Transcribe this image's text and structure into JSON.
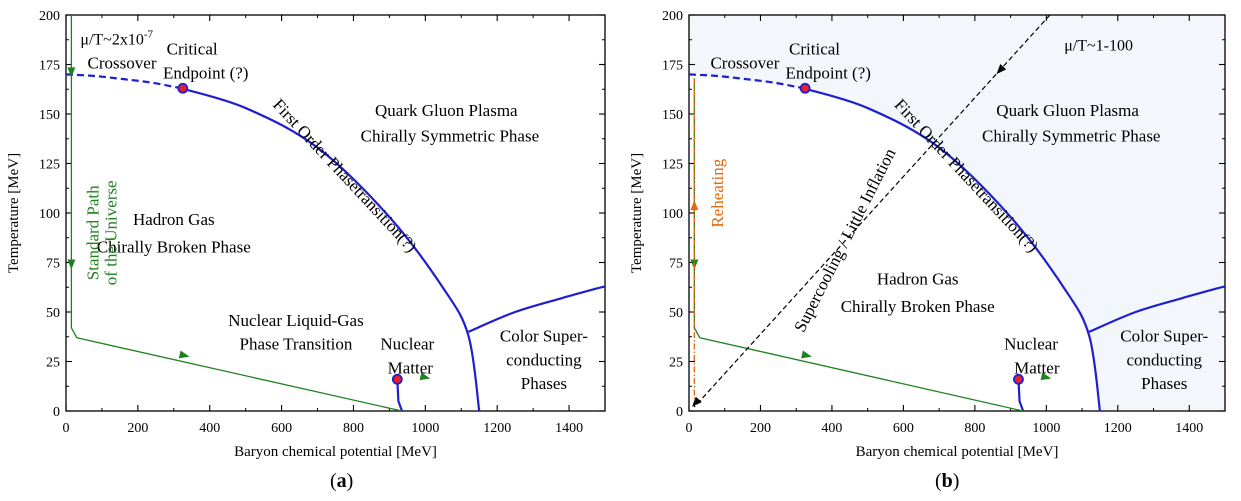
{
  "colors": {
    "boundary": "#1f1fd0",
    "path": "#208020",
    "reheating": "#e06a10",
    "dash_path": "#000000",
    "point_fill": "#e8202a",
    "point_stroke": "#1f1fd0",
    "shade": "#f3f7fb"
  },
  "panels": [
    {
      "label_open": "(",
      "label_bold": "a",
      "label_close": ")"
    },
    {
      "label_open": "(",
      "label_bold": "b",
      "label_close": ")"
    }
  ],
  "chart_data": [
    {
      "type": "line",
      "xlabel": "Baryon chemical potential [MeV]",
      "ylabel": "Temperature [MeV]",
      "xlim": [
        0,
        1500
      ],
      "ylim": [
        0,
        200
      ],
      "x_ticks": [
        "0",
        "200",
        "400",
        "600",
        "800",
        "1000",
        "1200",
        "1400"
      ],
      "y_ticks": [
        "0",
        "25",
        "50",
        "75",
        "100",
        "125",
        "150",
        "175",
        "200"
      ],
      "grid": false,
      "series": [
        {
          "kind": "crossover",
          "style": "dashed",
          "x": [
            0,
            80,
            160,
            240,
            320
          ],
          "y": [
            170,
            169.2,
            167.6,
            165.8,
            163
          ]
        },
        {
          "kind": "first-order",
          "style": "solid",
          "x": [
            320,
            500,
            700,
            900,
            1050,
            1120,
            1150
          ],
          "y": [
            163,
            153,
            133,
            98,
            62,
            38,
            0
          ]
        },
        {
          "kind": "color-superconducting",
          "style": "solid",
          "x": [
            1120,
            1250,
            1380,
            1500
          ],
          "y": [
            40,
            50,
            57,
            63
          ]
        },
        {
          "kind": "nuclear-liquid-gas",
          "style": "solid",
          "x": [
            922,
            925,
            935
          ],
          "y": [
            16,
            5,
            0
          ]
        },
        {
          "kind": "universe-path",
          "style": "solid",
          "x": [
            15,
            15,
            30,
            935
          ],
          "y": [
            200,
            42,
            37,
            0
          ],
          "arrows_at": [
            [
              15,
              171
            ],
            [
              15,
              74
            ],
            [
              330,
              28
            ],
            [
              1000,
              17
            ]
          ]
        }
      ],
      "points": [
        {
          "x": 325,
          "y": 163,
          "label": "Critical Endpoint (?)"
        },
        {
          "x": 922,
          "y": 16,
          "label": "Nuclear Liquid-Gas Phase Transition"
        }
      ],
      "annotations": {
        "mu_ratio": "μ/T~2x10",
        "mu_exp": "-7",
        "critical_1": "Critical",
        "critical_2": "Endpoint (?)",
        "crossover": "Crossover",
        "qgp_1": "Quark Gluon Plasma",
        "qgp_2": "Chirally Symmetric Phase",
        "first_order": "First Order Phasetransition(?)",
        "hadron_1": "Hadron Gas",
        "hadron_2": "Chirally Broken Phase",
        "standard_1": "Standard Path",
        "standard_2": "of the Universe",
        "nlg_1": "Nuclear Liquid-Gas",
        "nlg_2": "Phase Transition",
        "nm_1": "Nuclear",
        "nm_2": "Matter",
        "csc_1": "Color Super-",
        "csc_2": "conducting",
        "csc_3": "Phases"
      }
    },
    {
      "type": "line",
      "xlabel": "Baryon chemical potential [MeV]",
      "ylabel": "Temperature [MeV]",
      "xlim": [
        0,
        1500
      ],
      "ylim": [
        0,
        200
      ],
      "x_ticks": [
        "0",
        "200",
        "400",
        "600",
        "800",
        "1000",
        "1200",
        "1400"
      ],
      "y_ticks": [
        "0",
        "25",
        "50",
        "75",
        "100",
        "125",
        "150",
        "175",
        "200"
      ],
      "grid": false,
      "series": [
        {
          "kind": "crossover",
          "style": "dashed",
          "x": [
            0,
            80,
            160,
            240,
            320
          ],
          "y": [
            170,
            169.2,
            167.6,
            165.8,
            163
          ]
        },
        {
          "kind": "first-order",
          "style": "solid",
          "x": [
            320,
            500,
            700,
            900,
            1050,
            1120,
            1150
          ],
          "y": [
            163,
            153,
            133,
            98,
            62,
            38,
            0
          ]
        },
        {
          "kind": "color-superconducting",
          "style": "solid",
          "x": [
            1120,
            1250,
            1380,
            1500
          ],
          "y": [
            40,
            50,
            57,
            63
          ]
        },
        {
          "kind": "nuclear-liquid-gas",
          "style": "solid",
          "x": [
            922,
            925,
            935
          ],
          "y": [
            16,
            5,
            0
          ]
        },
        {
          "kind": "universe-path",
          "style": "solid",
          "x": [
            15,
            15,
            30,
            935
          ],
          "y": [
            168,
            42,
            37,
            0
          ],
          "arrows_at": [
            [
              15,
              74
            ],
            [
              330,
              28
            ],
            [
              1000,
              17
            ]
          ]
        },
        {
          "kind": "reheating",
          "style": "dashdot",
          "x": [
            15,
            15
          ],
          "y": [
            2,
            168
          ],
          "arrows_at": [
            [
              15,
              104
            ]
          ]
        },
        {
          "kind": "supercooling",
          "style": "dashed",
          "x": [
            1010,
            15
          ],
          "y": [
            200,
            2
          ]
        }
      ],
      "points": [
        {
          "x": 325,
          "y": 163,
          "label": "Critical Endpoint (?)"
        },
        {
          "x": 922,
          "y": 16,
          "label": "Nuclear Matter"
        }
      ],
      "annotations": {
        "mu_ratio": "μ/T~1-100",
        "critical_1": "Critical",
        "critical_2": "Endpoint (?)",
        "crossover": "Crossover",
        "qgp_1": "Quark Gluon Plasma",
        "qgp_2": "Chirally Symmetric Phase",
        "first_order": "First Order Phasetransition(?)",
        "reheating": "Reheating",
        "supercooling": "Supercooling / Little Inflation",
        "hadron_1": "Hadron Gas",
        "hadron_2": "Chirally Broken Phase",
        "nm_1": "Nuclear",
        "nm_2": "Matter",
        "csc_1": "Color Super-",
        "csc_2": "conducting",
        "csc_3": "Phases"
      }
    }
  ]
}
